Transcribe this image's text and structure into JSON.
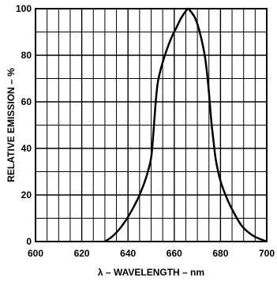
{
  "chart_data": {
    "type": "line",
    "title": "",
    "xlabel": "λ – WAVELENGTH – nm",
    "ylabel": "RELATIVE EMISSION – %",
    "xlim": [
      600,
      700
    ],
    "ylim": [
      0,
      100
    ],
    "xticks": [
      600,
      620,
      640,
      660,
      680,
      700
    ],
    "yticks": [
      0,
      20,
      40,
      60,
      80,
      100
    ],
    "grid": true,
    "x_minor_step": 5,
    "y_minor_step": 10,
    "series": [
      {
        "color": "#000000",
        "points": [
          [
            630,
            0
          ],
          [
            633,
            2
          ],
          [
            636,
            5
          ],
          [
            639,
            9
          ],
          [
            642,
            14
          ],
          [
            645,
            20
          ],
          [
            648,
            28
          ],
          [
            650,
            36
          ],
          [
            651,
            47
          ],
          [
            652,
            60
          ],
          [
            653,
            69
          ],
          [
            655,
            77
          ],
          [
            657,
            83
          ],
          [
            659,
            88
          ],
          [
            661,
            92
          ],
          [
            663,
            96
          ],
          [
            665,
            99
          ],
          [
            666,
            100
          ],
          [
            667,
            99
          ],
          [
            669,
            96
          ],
          [
            671,
            90
          ],
          [
            673,
            81
          ],
          [
            674,
            74
          ],
          [
            675,
            64
          ],
          [
            676,
            52
          ],
          [
            677,
            43
          ],
          [
            678,
            35
          ],
          [
            680,
            26
          ],
          [
            683,
            18
          ],
          [
            686,
            12
          ],
          [
            689,
            7
          ],
          [
            692,
            4
          ],
          [
            695,
            2
          ],
          [
            700,
            0
          ]
        ]
      }
    ]
  }
}
